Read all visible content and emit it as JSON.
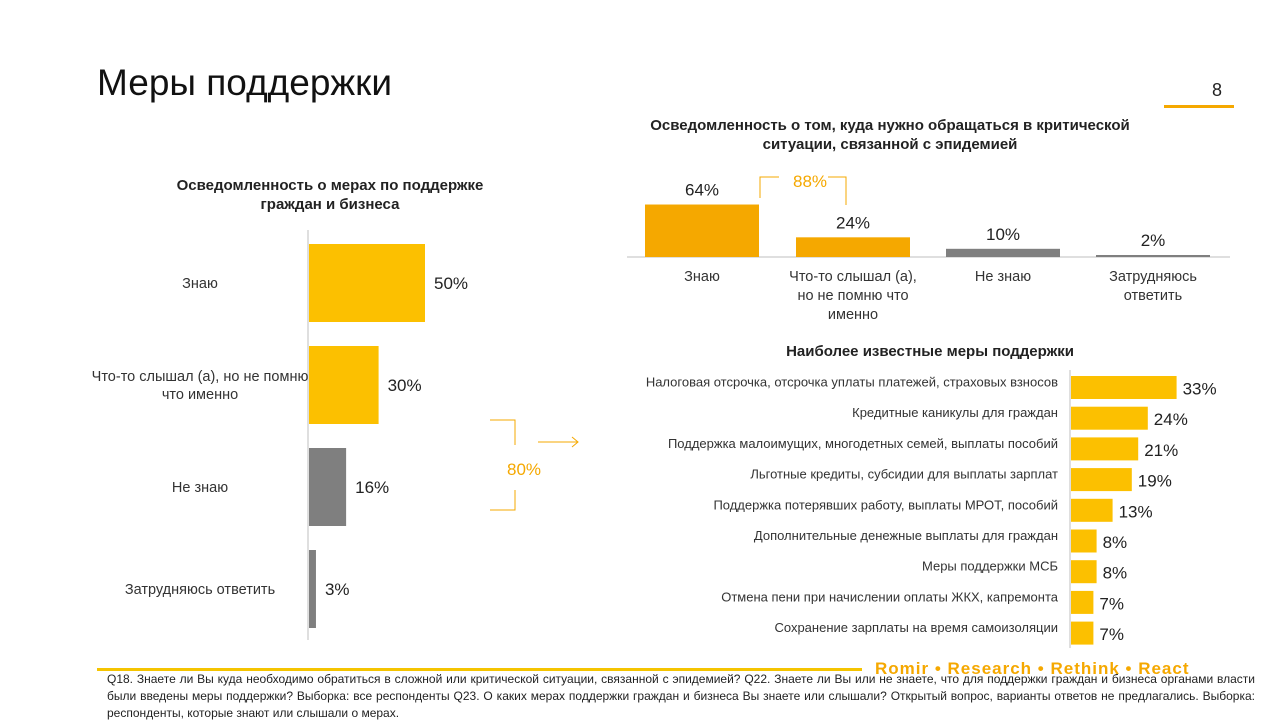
{
  "page": {
    "title": "Меры поддержки",
    "page_number": "8",
    "brand": "Romir • Research • Rethink • React",
    "footer": "Q18. Знаете ли Вы куда необходимо обратиться в сложной или критической ситуации, связанной с эпидемией? Q22. Знаете ли Вы или не знаете, что для поддержки граждан и бизнеса органами власти были введены меры поддержки? Выборка: все респонденты Q23. О каких мерах поддержки граждан и бизнеса Вы знаете или слышали? Открытый вопрос, варианты ответов не предлагались. Выборка: респонденты, которые знают или слышали о мерах.",
    "colors": {
      "yellow": "#fcc000",
      "orange": "#f5a800",
      "gray": "#7f7f7f",
      "axis": "#bfbfbf"
    }
  },
  "chart_data": [
    {
      "type": "bar",
      "orientation": "horizontal",
      "title": "Осведомленность о мерах по поддержке граждан и бизнеса",
      "categories": [
        "Знаю",
        "Что-то слышал (а), но не помню что именно",
        "Не знаю",
        "Затрудняюсь ответить"
      ],
      "values": [
        50,
        30,
        16,
        3
      ],
      "value_labels": [
        "50%",
        "30%",
        "16%",
        "3%"
      ],
      "bar_colors": [
        "#fcc000",
        "#fcc000",
        "#7f7f7f",
        "#7f7f7f"
      ],
      "bracket_label": "80%",
      "unit": "%"
    },
    {
      "type": "bar",
      "orientation": "vertical",
      "title": "Осведомленность о том, куда нужно обращаться в критической ситуации, связанной с эпидемией",
      "categories": [
        "Знаю",
        "Что-то слышал (а), но не помню что именно",
        "Не знаю",
        "Затрудняюсь ответить"
      ],
      "values": [
        64,
        24,
        10,
        2
      ],
      "value_labels": [
        "64%",
        "24%",
        "10%",
        "2%"
      ],
      "bar_colors": [
        "#f5a800",
        "#f5a800",
        "#7f7f7f",
        "#7f7f7f"
      ],
      "bracket_label": "88%",
      "unit": "%"
    },
    {
      "type": "bar",
      "orientation": "horizontal",
      "title": "Наиболее известные меры поддержки",
      "categories": [
        "Налоговая отсрочка, отсрочка уплаты платежей, страховых взносов",
        "Кредитные каникулы для граждан",
        "Поддержка малоимущих, многодетных семей, выплаты пособий",
        "Льготные кредиты, субсидии для выплаты зарплат",
        "Поддержка потерявших работу, выплаты МРОТ, пособий",
        "Дополнительные денежные выплаты для граждан",
        "Меры поддержки МСБ",
        "Отмена пени при начислении оплаты ЖКХ, капремонта",
        "Сохранение зарплаты на время самоизоляции"
      ],
      "values": [
        33,
        24,
        21,
        19,
        13,
        8,
        8,
        7,
        7
      ],
      "value_labels": [
        "33%",
        "24%",
        "21%",
        "19%",
        "13%",
        "8%",
        "8%",
        "7%",
        "7%"
      ],
      "bar_color": "#fcc000",
      "unit": "%"
    }
  ]
}
